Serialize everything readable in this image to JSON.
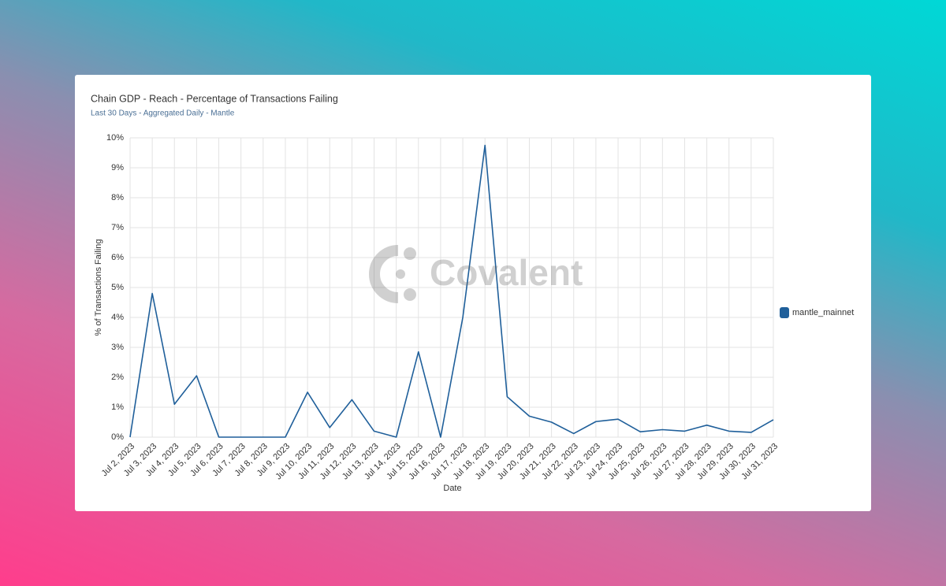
{
  "chart_data": {
    "type": "line",
    "title": "Chain GDP - Reach - Percentage of Transactions Failing",
    "subtitle": "Last 30 Days - Aggregated Daily - Mantle",
    "watermark": "Covalent",
    "x_label": "Date",
    "y_label": "% of Transactions Failing",
    "categories": [
      "Jul 2, 2023",
      "Jul 3, 2023",
      "Jul 4, 2023",
      "Jul 5, 2023",
      "Jul 6, 2023",
      "Jul 7, 2023",
      "Jul 8, 2023",
      "Jul 9, 2023",
      "Jul 10, 2023",
      "Jul 11, 2023",
      "Jul 12, 2023",
      "Jul 13, 2023",
      "Jul 14, 2023",
      "Jul 15, 2023",
      "Jul 16, 2023",
      "Jul 17, 2023",
      "Jul 18, 2023",
      "Jul 19, 2023",
      "Jul 20, 2023",
      "Jul 21, 2023",
      "Jul 22, 2023",
      "Jul 23, 2023",
      "Jul 24, 2023",
      "Jul 25, 2023",
      "Jul 26, 2023",
      "Jul 27, 2023",
      "Jul 28, 2023",
      "Jul 29, 2023",
      "Jul 30, 2023",
      "Jul 31, 2023"
    ],
    "series": [
      {
        "name": "mantle_mainnet",
        "color": "#1f5f9a",
        "values": [
          0,
          4.8,
          1.1,
          2.05,
          0,
          0,
          0,
          0,
          1.5,
          0.32,
          1.25,
          0.2,
          0,
          2.85,
          0,
          4.0,
          9.75,
          1.35,
          0.7,
          0.5,
          0.12,
          0.52,
          0.6,
          0.18,
          0.25,
          0.2,
          0.4,
          0.2,
          0.16,
          0.58
        ]
      }
    ],
    "ylim": [
      0,
      10
    ],
    "yticks": [
      {
        "value": 0,
        "label": "0%"
      },
      {
        "value": 1,
        "label": "1%"
      },
      {
        "value": 2,
        "label": "2%"
      },
      {
        "value": 3,
        "label": "3%"
      },
      {
        "value": 4,
        "label": "4%"
      },
      {
        "value": 5,
        "label": "5%"
      },
      {
        "value": 6,
        "label": "6%"
      },
      {
        "value": 7,
        "label": "7%"
      },
      {
        "value": 8,
        "label": "8%"
      },
      {
        "value": 9,
        "label": "9%"
      },
      {
        "value": 10,
        "label": "10%"
      }
    ],
    "grid": true,
    "legend": "right"
  }
}
